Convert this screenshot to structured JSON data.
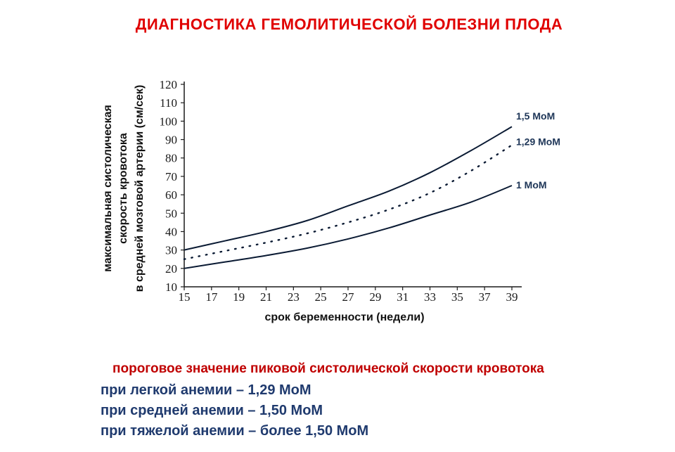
{
  "title": "ДИАГНОСТИКА ГЕМОЛИТИЧЕСКОЙ БОЛЕЗНИ ПЛОДА",
  "chart_data": {
    "type": "line",
    "ylabel_lines": [
      "максимальная систолическая",
      "скорость кровотока",
      "в средней мозговой артерии (см/сек)"
    ],
    "xlabel": "срок беременности (недели)",
    "xlim": [
      15,
      39
    ],
    "ylim": [
      10,
      120
    ],
    "x_ticks": [
      15,
      17,
      19,
      21,
      23,
      25,
      27,
      29,
      31,
      33,
      35,
      37,
      39
    ],
    "y_ticks": [
      10,
      20,
      30,
      40,
      50,
      60,
      70,
      80,
      90,
      100,
      110,
      120
    ],
    "grid": false,
    "x": [
      15,
      18,
      21,
      24,
      27,
      30,
      33,
      36,
      39
    ],
    "series": [
      {
        "name": "1,5 MoM",
        "style": "solid",
        "values": [
          30,
          35,
          40,
          46,
          54,
          62,
          72,
          84,
          97
        ]
      },
      {
        "name": "1,29 MoM",
        "style": "dotted",
        "values": [
          25,
          29.5,
          34,
          39,
          45,
          52,
          61,
          73,
          87
        ]
      },
      {
        "name": "1 MoM",
        "style": "solid",
        "values": [
          20,
          23.5,
          27,
          31,
          36,
          42,
          49,
          56,
          65
        ]
      }
    ],
    "colors": {
      "lines": "#0a1a33",
      "series_labels": "#1d3557",
      "axis": "#1a1a1a"
    }
  },
  "notes": {
    "heading": "пороговое значение пиковой систолической скорости кровотока",
    "lines": [
      "при легкой анемии – 1,29 МоМ",
      "при средней анемии – 1,50 МоМ",
      "при тяжелой анемии – более 1,50 МоМ"
    ],
    "colors": {
      "heading": "#c00000",
      "lines": "#1f3a6e"
    }
  }
}
